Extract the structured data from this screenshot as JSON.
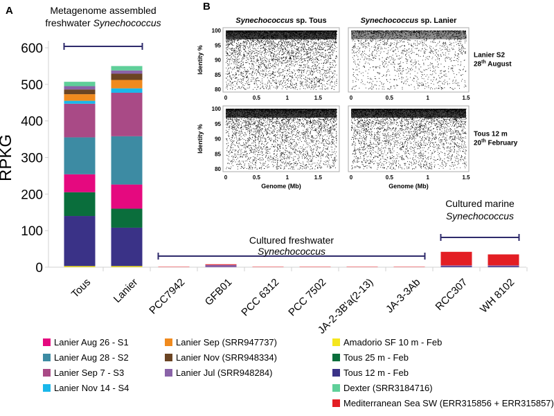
{
  "chart_data": {
    "type": "bar",
    "stacked": true,
    "panel_label": "A",
    "ylabel": "RPKG",
    "ylim": [
      0,
      600
    ],
    "yticks": [
      0,
      100,
      200,
      300,
      400,
      500,
      600
    ],
    "grid": false,
    "categories": [
      "Tous",
      "Lanier",
      "PCC7942",
      "GFB01",
      "PCC 6312",
      "PCC 7502",
      "JA-2-3B'a(2-13)",
      "JA-3-3Ab",
      "RCC307",
      "WH 8102"
    ],
    "series": [
      {
        "name": "Amadorio SF 10 m - Feb",
        "color": "#f5e61e",
        "values": [
          3,
          3,
          0,
          0,
          0,
          0,
          0,
          0,
          0,
          0
        ]
      },
      {
        "name": "Tous 12 m - Feb",
        "color": "#3a3287",
        "values": [
          137,
          105,
          0,
          0,
          0,
          0,
          0,
          0,
          2,
          2
        ]
      },
      {
        "name": "Tous 25 m - Feb",
        "color": "#0a6e3c",
        "values": [
          65,
          52,
          0,
          0,
          0,
          0,
          0,
          0,
          0,
          0
        ]
      },
      {
        "name": "Lanier Aug 26 - S1",
        "color": "#e5097f",
        "values": [
          49,
          66,
          0,
          0,
          0,
          0,
          0,
          0,
          0,
          0
        ]
      },
      {
        "name": "Lanier Aug 28 - S2",
        "color": "#3d8ba3",
        "values": [
          101,
          132,
          0,
          0,
          0,
          0,
          0,
          0,
          0,
          0
        ]
      },
      {
        "name": "Lanier Sep 7 - S3",
        "color": "#a94a86",
        "values": [
          92,
          119,
          0,
          0,
          0,
          0,
          0,
          0,
          0,
          0
        ]
      },
      {
        "name": "Lanier Nov 14 - S4",
        "color": "#1ab7ea",
        "values": [
          8,
          12,
          0,
          0,
          0,
          0,
          0,
          0,
          0,
          0
        ]
      },
      {
        "name": "Lanier Sep (SRR947737)",
        "color": "#f08a1e",
        "values": [
          18,
          23,
          0,
          0,
          0,
          0,
          0,
          0,
          0,
          0
        ]
      },
      {
        "name": "Lanier Nov (SRR948334)",
        "color": "#6b4423",
        "values": [
          13,
          17,
          0,
          0,
          0,
          0,
          0,
          0,
          0,
          0
        ]
      },
      {
        "name": "Lanier Jul (SRR948284)",
        "color": "#8a63a8",
        "values": [
          9,
          9,
          0,
          6,
          0,
          0,
          0,
          0,
          3,
          3
        ]
      },
      {
        "name": "Dexter (SRR3184716)",
        "color": "#5fcf99",
        "values": [
          12,
          12,
          0,
          0,
          0,
          0,
          0,
          0,
          0,
          0
        ]
      },
      {
        "name": "Mediterranean Sea SW (ERR315856 + ERR315857)",
        "color": "#e31e24",
        "values": [
          0,
          0,
          1,
          2,
          1,
          1,
          1,
          1,
          37,
          30
        ]
      }
    ],
    "groups": [
      {
        "label_line1": "Metagenome assembled",
        "label_line2": "freshwater",
        "label_italic": "Synechococcus",
        "from": "Tous",
        "to": "Lanier"
      },
      {
        "label_line1": "Cultured freshwater",
        "label_italic": "Synechococcus",
        "from": "PCC7942",
        "to": "JA-3-3Ab"
      },
      {
        "label_line1": "Cultured marine",
        "label_italic": "Synechococcus",
        "from": "RCC307",
        "to": "WH 8102"
      }
    ],
    "legend_placement": "bottom",
    "legend_columns": [
      [
        "Lanier Aug 26 - S1",
        "Lanier Aug 28 - S2",
        "Lanier Sep 7 - S3",
        "Lanier Nov 14 - S4"
      ],
      [
        "Lanier Sep (SRR947737)",
        "Lanier Nov (SRR948334)",
        "Lanier Jul (SRR948284)"
      ],
      [
        "Amadorio SF 10 m - Feb",
        "Tous 25 m - Feb",
        "Tous 12 m - Feb",
        "Dexter (SRR3184716)",
        "Mediterranean Sea SW (ERR315856 + ERR315857)"
      ]
    ],
    "inset": {
      "panel_label": "B",
      "type": "scatter",
      "ylabel": "Identity %",
      "xlabel": "Genome (Mb)",
      "yticks": [
        80,
        85,
        90,
        95,
        100
      ],
      "columns": [
        {
          "title_italic": "Synechococcus",
          "title_rest": " sp. Tous",
          "xticks": [
            "0",
            "0.5",
            "1",
            "1.5"
          ],
          "xmax": 1.8
        },
        {
          "title_italic": "Synechococcus",
          "title_rest": " sp. Lanier",
          "xticks": [
            "0",
            "0.5",
            "1",
            "1.5"
          ],
          "xmax": 1.5
        }
      ],
      "rows": [
        {
          "label_line1": "Lanier S2",
          "label_line2_pre": "28",
          "label_sup": "th",
          "label_line2_post": " August"
        },
        {
          "label_line1": "Tous 12 m",
          "label_line2_pre": "20",
          "label_sup": "th",
          "label_line2_post": " February"
        }
      ]
    }
  }
}
